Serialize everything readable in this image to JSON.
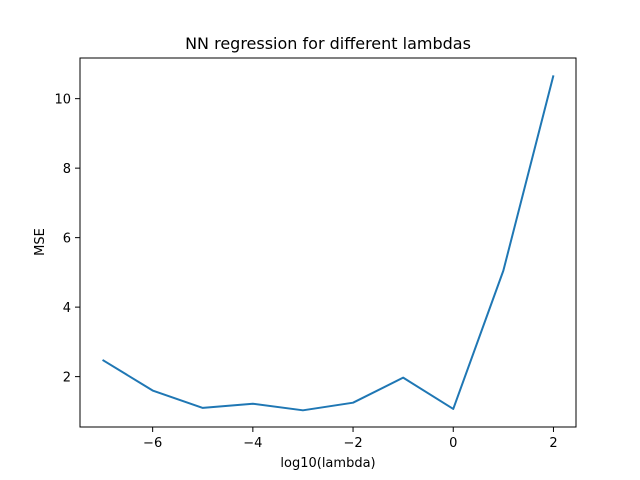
{
  "chart_data": {
    "type": "line",
    "title": "NN regression for different lambdas",
    "xlabel": "log10(lambda)",
    "ylabel": "MSE",
    "xlim": [
      -7.45,
      2.45
    ],
    "ylim": [
      0.55,
      11.17
    ],
    "xticks": [
      -6,
      -4,
      -2,
      0,
      2
    ],
    "xtick_labels": [
      "−6",
      "−4",
      "−2",
      "0",
      "2"
    ],
    "yticks": [
      2,
      4,
      6,
      8,
      10
    ],
    "ytick_labels": [
      "2",
      "4",
      "6",
      "8",
      "10"
    ],
    "grid": false,
    "series": [
      {
        "name": "MSE",
        "color": "#1f77b4",
        "x": [
          -7,
          -6,
          -5,
          -4,
          -3,
          -2,
          -1,
          0,
          1,
          2
        ],
        "y": [
          2.48,
          1.6,
          1.1,
          1.22,
          1.03,
          1.25,
          1.97,
          1.07,
          5.05,
          10.67
        ]
      }
    ]
  }
}
